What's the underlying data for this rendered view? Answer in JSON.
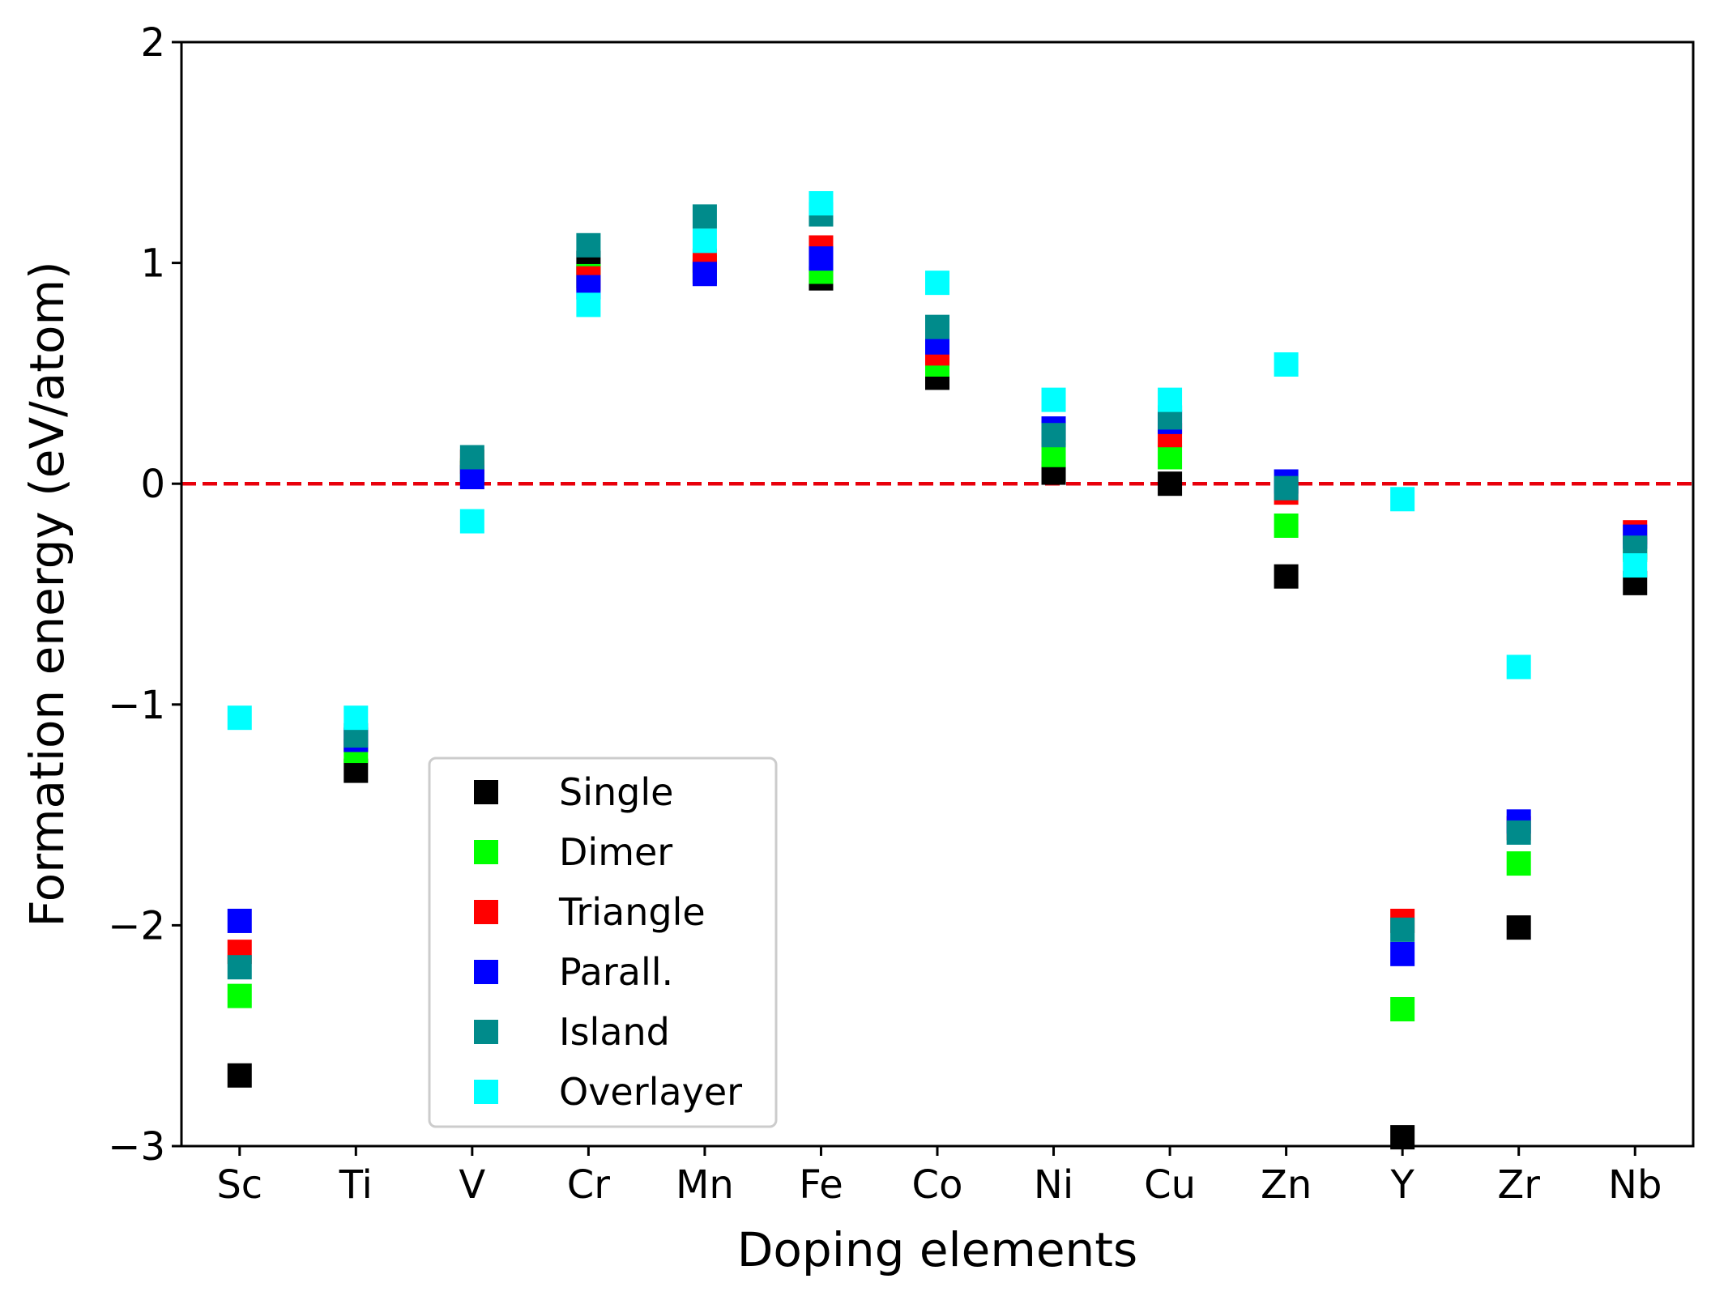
{
  "chart_data": {
    "type": "scatter",
    "xlabel": "Doping elements",
    "ylabel": "Formation energy (eV/atom)",
    "categories": [
      "Sc",
      "Ti",
      "V",
      "Cr",
      "Mn",
      "Fe",
      "Co",
      "Ni",
      "Cu",
      "Zn",
      "Y",
      "Zr",
      "Nb"
    ],
    "ylim": [
      -3,
      2
    ],
    "yticks": [
      -3,
      -2,
      -1,
      0,
      1,
      2
    ],
    "ytick_labels": [
      "−3",
      "−2",
      "−1",
      "0",
      "1",
      "2"
    ],
    "grid": false,
    "legend_position": "lower-left",
    "reference_line": {
      "y": 0,
      "color": "#e8000b",
      "style": "dashed"
    },
    "marker": "square",
    "series": [
      {
        "name": "Single",
        "color": "#000000",
        "values": [
          -2.68,
          -1.3,
          0.05,
          1.0,
          0.96,
          0.93,
          0.48,
          0.05,
          0.0,
          -0.42,
          -2.96,
          -2.01,
          -0.45
        ]
      },
      {
        "name": "Dimer",
        "color": "#00ff00",
        "values": [
          -2.32,
          -1.21,
          0.06,
          0.94,
          0.98,
          0.96,
          0.54,
          0.13,
          0.12,
          -0.19,
          -2.38,
          -1.72,
          -0.3
        ]
      },
      {
        "name": "Triangle",
        "color": "#ff0000",
        "values": [
          -2.12,
          -1.16,
          0.1,
          0.93,
          1.01,
          1.07,
          0.59,
          0.23,
          0.22,
          -0.04,
          -1.98,
          -1.56,
          -0.22
        ]
      },
      {
        "name": "Parall.",
        "color": "#0000ff",
        "values": [
          -1.98,
          -1.16,
          0.03,
          0.89,
          0.95,
          1.02,
          0.64,
          0.25,
          0.28,
          0.01,
          -2.13,
          -1.53,
          -0.24
        ]
      },
      {
        "name": "Island",
        "color": "#008b8b",
        "values": [
          -2.19,
          -1.14,
          0.12,
          1.08,
          1.21,
          1.22,
          0.71,
          0.22,
          0.3,
          -0.02,
          -2.02,
          -1.58,
          -0.29
        ]
      },
      {
        "name": "Overlayer",
        "color": "#00ffff",
        "values": [
          -1.06,
          -1.06,
          -0.17,
          0.81,
          1.1,
          1.27,
          0.91,
          0.38,
          0.38,
          0.54,
          -0.07,
          -0.83,
          -0.37
        ]
      }
    ]
  }
}
